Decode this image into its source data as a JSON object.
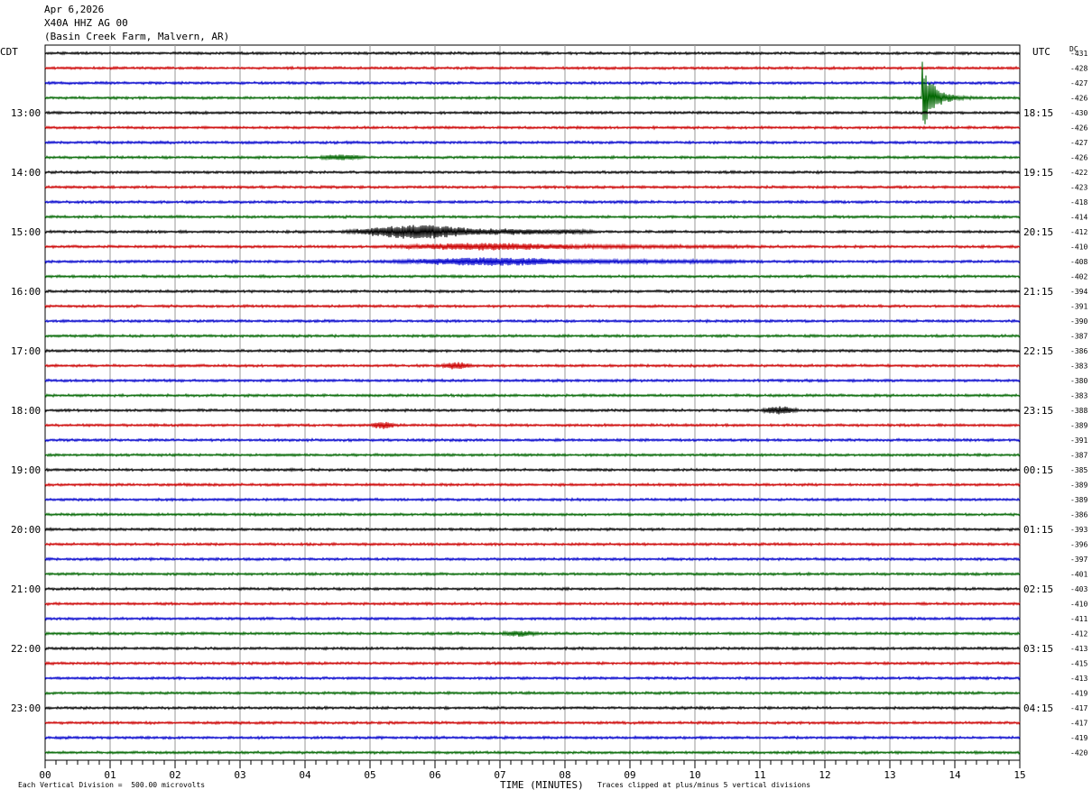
{
  "header": {
    "date": "Apr 6,2026",
    "station": "X40A HHZ AG 00",
    "location": "(Basin Creek Farm, Malvern, AR)"
  },
  "labels": {
    "left_tz": "CDT",
    "right_tz": "UTC",
    "dc": "DC",
    "xlabel": "TIME (MINUTES)",
    "scale_note": "Each Vertical Division =  500.00 microvolts",
    "clip_note": "Traces clipped at plus/minus 5 vertical divisions"
  },
  "colors": {
    "trace_cycle": [
      "#000000",
      "#cc0000",
      "#0000cc",
      "#006600"
    ],
    "grid": "#999999",
    "frame": "#000000"
  },
  "chart_data": {
    "type": "line",
    "title": "",
    "xlabel": "TIME (MINUTES)",
    "xlim": [
      0,
      15
    ],
    "x_ticks": [
      "00",
      "01",
      "02",
      "03",
      "04",
      "05",
      "06",
      "07",
      "08",
      "09",
      "10",
      "11",
      "12",
      "13",
      "14",
      "15"
    ],
    "minutes_per_trace": 15,
    "left_hour_labels": [
      "13:00",
      "14:00",
      "15:00",
      "16:00",
      "17:00",
      "18:00",
      "19:00",
      "20:00",
      "21:00",
      "22:00",
      "23:00"
    ],
    "right_hour_labels": [
      "18:15",
      "19:15",
      "20:15",
      "21:15",
      "22:15",
      "23:15",
      "00:15",
      "01:15",
      "02:15",
      "03:15",
      "04:15"
    ],
    "dc_offsets": [
      "-431",
      "-428",
      "-427",
      "-426",
      "-430",
      "-426",
      "-427",
      "-426",
      "-422",
      "-423",
      "-418",
      "-414",
      "-412",
      "-410",
      "-408",
      "-402",
      "-394",
      "-391",
      "-390",
      "-387",
      "-386",
      "-383",
      "-380",
      "-383",
      "-388",
      "-389",
      "-391",
      "-387",
      "-385",
      "-389",
      "-389",
      "-386",
      "-393",
      "-396",
      "-397",
      "-401",
      "-403",
      "-410",
      "-411",
      "-412",
      "-413",
      "-415",
      "-413",
      "-419",
      "-417",
      "-417",
      "-419",
      "-420"
    ],
    "events": [
      {
        "trace": 3,
        "start_min": 13.5,
        "end_min": 15.0,
        "amp_div": 5.0,
        "kind": "local-quake"
      },
      {
        "trace": 12,
        "start_min": 4.5,
        "end_min": 8.5,
        "amp_div": 1.2,
        "kind": "teleseism"
      },
      {
        "trace": 13,
        "start_min": 5.0,
        "end_min": 11.0,
        "amp_div": 0.5,
        "kind": "teleseism"
      },
      {
        "trace": 14,
        "start_min": 5.0,
        "end_min": 11.0,
        "amp_div": 0.6,
        "kind": "teleseism"
      },
      {
        "trace": 21,
        "start_min": 6.1,
        "end_min": 6.6,
        "amp_div": 0.4,
        "kind": "noise-burst"
      },
      {
        "trace": 24,
        "start_min": 11.0,
        "end_min": 11.6,
        "amp_div": 0.45,
        "kind": "noise-burst"
      },
      {
        "trace": 25,
        "start_min": 5.0,
        "end_min": 5.4,
        "amp_div": 0.4,
        "kind": "noise-burst"
      },
      {
        "trace": 7,
        "start_min": 4.2,
        "end_min": 4.9,
        "amp_div": 0.3,
        "kind": "noise-burst"
      },
      {
        "trace": 39,
        "start_min": 7.0,
        "end_min": 7.6,
        "amp_div": 0.3,
        "kind": "noise-burst"
      }
    ]
  }
}
